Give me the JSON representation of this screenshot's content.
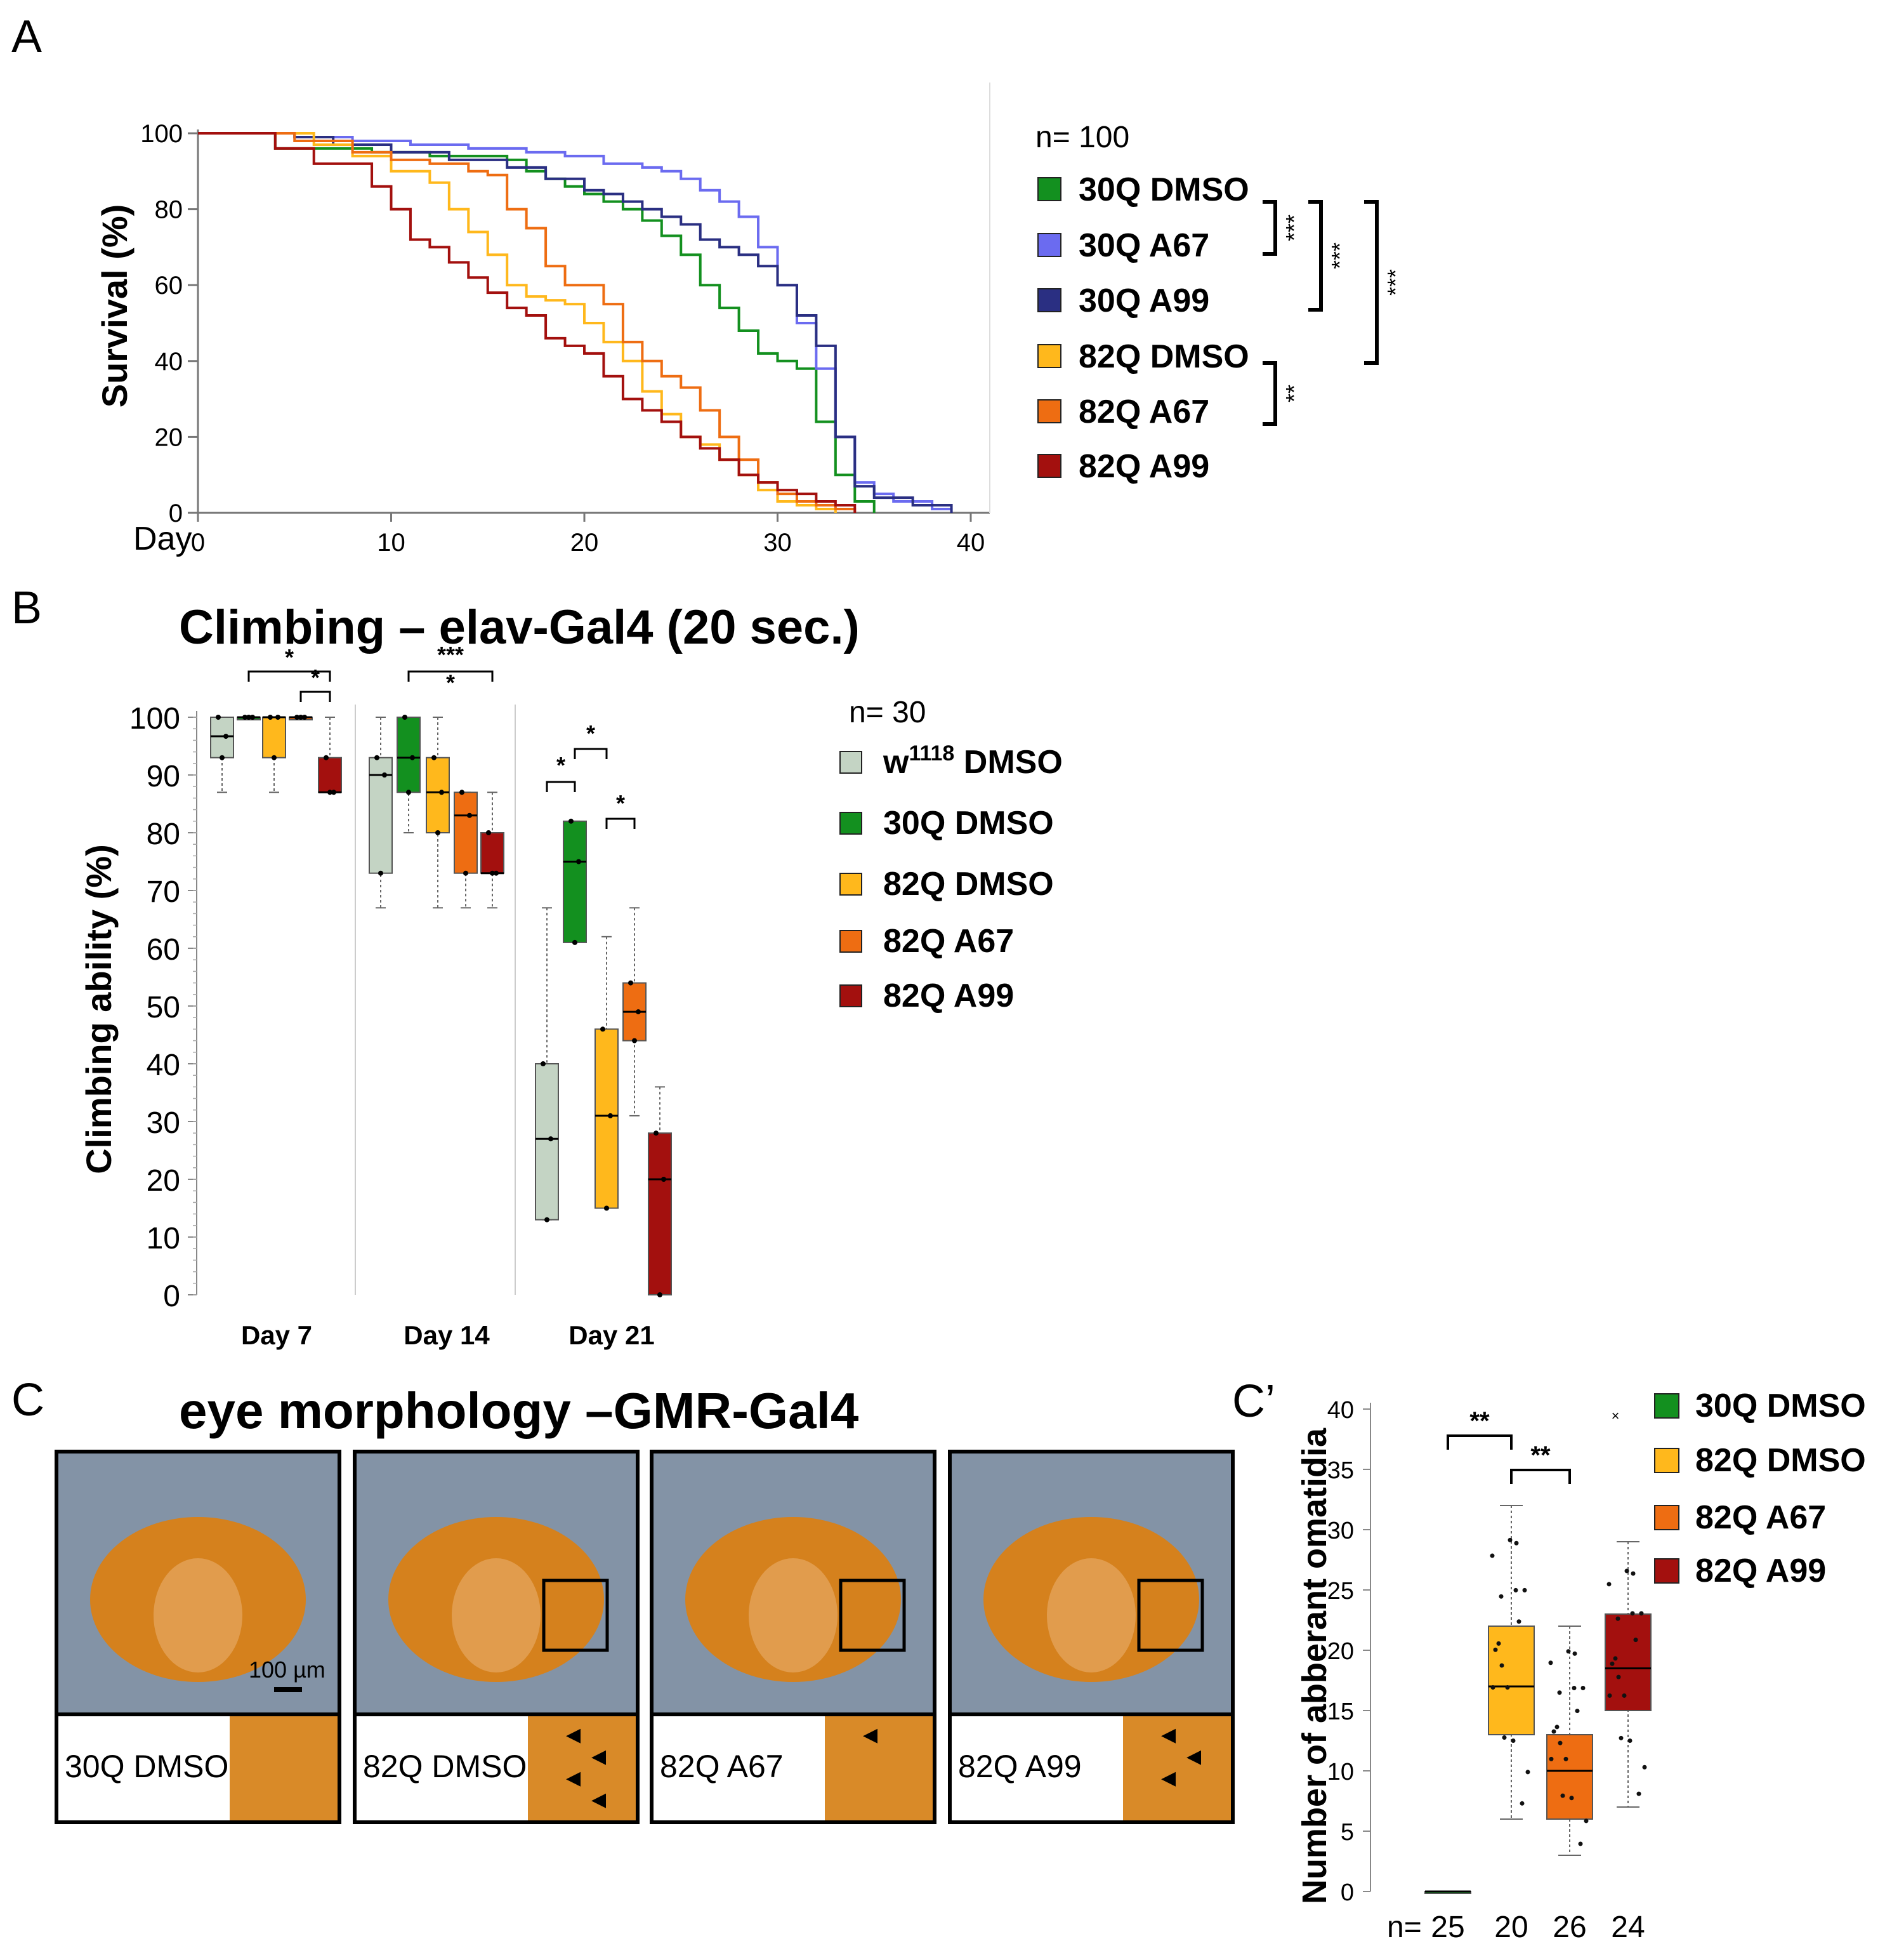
{
  "panels": {
    "A": {
      "letter": "A"
    },
    "B": {
      "letter": "B",
      "title": "Climbing  – elav-Gal4 (20 sec.)"
    },
    "C": {
      "letter": "C",
      "title": "eye morphology –GMR-Gal4",
      "scale_bar": "100 µm",
      "photos": [
        {
          "label": "30Q DMSO",
          "box": false,
          "arrows": 0
        },
        {
          "label": "82Q DMSO",
          "box": true,
          "arrows": 4
        },
        {
          "label": "82Q A67",
          "box": true,
          "arrows": 1
        },
        {
          "label": "82Q A99",
          "box": true,
          "arrows": 3
        }
      ]
    },
    "Cprime": {
      "letter": "C’"
    }
  },
  "colors": {
    "30Q DMSO": "#13901f",
    "30Q A67": "#6b6bf0",
    "30Q A99": "#2a2f82",
    "82Q DMSO": "#ffb81c",
    "82Q A67": "#ee6d12",
    "82Q A99": "#a3100e",
    "w1118 DMSO": "#c4d4c4"
  },
  "chart_data": [
    {
      "id": "A",
      "type": "line",
      "xlabel": "Day",
      "ylabel": "Survival (%)",
      "xlim": [
        0,
        40
      ],
      "ylim": [
        0,
        100
      ],
      "xticks": [
        0,
        10,
        20,
        30,
        40
      ],
      "yticks": [
        0,
        20,
        40,
        60,
        80,
        100
      ],
      "n_label": "n=  100",
      "series": [
        {
          "name": "30Q DMSO",
          "x": [
            0,
            4,
            7,
            9,
            12,
            14,
            16,
            17,
            18,
            19,
            20,
            21,
            22,
            23,
            24,
            25,
            26,
            27,
            28,
            29,
            30,
            31,
            32,
            33,
            34,
            35
          ],
          "y": [
            100,
            96,
            96,
            95,
            94,
            94,
            93,
            90,
            88,
            86,
            84,
            82,
            80,
            77,
            73,
            68,
            60,
            54,
            48,
            42,
            40,
            38,
            24,
            10,
            3,
            0
          ]
        },
        {
          "name": "30Q A67",
          "x": [
            0,
            5,
            8,
            11,
            14,
            17,
            19,
            21,
            23,
            24,
            25,
            26,
            27,
            28,
            29,
            30,
            31,
            32,
            33,
            34,
            35,
            36,
            38,
            39
          ],
          "y": [
            100,
            99,
            98,
            97,
            96,
            95,
            94,
            92,
            91,
            90,
            88,
            85,
            82,
            78,
            70,
            60,
            50,
            38,
            20,
            8,
            5,
            3,
            1,
            0
          ]
        },
        {
          "name": "30Q A99",
          "x": [
            0,
            5,
            7,
            10,
            13,
            16,
            18,
            20,
            21,
            22,
            23,
            24,
            25,
            26,
            27,
            28,
            29,
            30,
            31,
            32,
            33,
            34,
            35,
            37,
            39
          ],
          "y": [
            100,
            99,
            97,
            95,
            93,
            91,
            88,
            85,
            84,
            82,
            80,
            78,
            76,
            72,
            70,
            68,
            65,
            60,
            52,
            44,
            20,
            7,
            4,
            2,
            0
          ]
        },
        {
          "name": "82Q DMSO",
          "x": [
            0,
            4,
            6,
            8,
            10,
            12,
            13,
            14,
            15,
            16,
            17,
            18,
            19,
            20,
            21,
            22,
            23,
            24,
            25,
            26,
            27,
            28,
            29,
            30,
            31,
            32,
            33
          ],
          "y": [
            100,
            100,
            97,
            94,
            90,
            87,
            80,
            74,
            68,
            60,
            57,
            56,
            55,
            50,
            45,
            40,
            32,
            26,
            20,
            18,
            14,
            10,
            6,
            3,
            2,
            1,
            0
          ]
        },
        {
          "name": "82Q A67",
          "x": [
            0,
            5,
            8,
            10,
            12,
            14,
            15,
            16,
            17,
            18,
            19,
            20,
            21,
            22,
            23,
            24,
            25,
            26,
            27,
            28,
            29,
            30,
            31,
            32,
            33,
            34
          ],
          "y": [
            100,
            98,
            95,
            93,
            92,
            90,
            89,
            80,
            75,
            65,
            60,
            60,
            55,
            45,
            40,
            36,
            33,
            27,
            20,
            14,
            8,
            5,
            3,
            2,
            1,
            0
          ]
        },
        {
          "name": "82Q A99",
          "x": [
            0,
            4,
            6,
            9,
            10,
            11,
            12,
            13,
            14,
            15,
            16,
            17,
            18,
            19,
            20,
            21,
            22,
            23,
            24,
            25,
            26,
            27,
            28,
            29,
            30,
            31,
            32,
            33,
            34
          ],
          "y": [
            100,
            96,
            92,
            86,
            80,
            72,
            70,
            66,
            62,
            58,
            54,
            52,
            46,
            44,
            42,
            36,
            30,
            27,
            24,
            20,
            17,
            14,
            10,
            8,
            6,
            5,
            3,
            2,
            0
          ]
        }
      ],
      "significance": [
        {
          "label": "***",
          "between": [
            "30Q DMSO",
            "30Q A67"
          ]
        },
        {
          "label": "***",
          "between": [
            "30Q DMSO",
            "30Q A99"
          ]
        },
        {
          "label": "***",
          "between": [
            "30Q DMSO",
            "82Q DMSO"
          ]
        },
        {
          "label": "**",
          "between": [
            "82Q DMSO",
            "82Q A67"
          ]
        }
      ]
    },
    {
      "id": "B",
      "type": "box",
      "title": "Climbing  – elav-Gal4 (20 sec.)",
      "ylabel": "Climbing ability (%)",
      "ylim": [
        0,
        100
      ],
      "yticks": [
        0,
        10,
        20,
        30,
        40,
        50,
        60,
        70,
        80,
        90,
        100
      ],
      "groups": [
        "Day 7",
        "Day 14",
        "Day 21"
      ],
      "n_label": "n=  30",
      "legend": [
        {
          "name": "w1118 DMSO",
          "base": "w",
          "sup": "1118",
          "rest": " DMSO"
        },
        {
          "name": "30Q DMSO",
          "base": "30Q DMSO",
          "sup": "",
          "rest": ""
        },
        {
          "name": "82Q DMSO",
          "base": "82Q DMSO",
          "sup": "",
          "rest": ""
        },
        {
          "name": "82Q A67",
          "base": "82Q A67",
          "sup": "",
          "rest": ""
        },
        {
          "name": "82Q A99",
          "base": "82Q A99",
          "sup": "",
          "rest": ""
        }
      ],
      "boxes": [
        {
          "group": "Day 7",
          "name": "w1118 DMSO",
          "min": 87,
          "q1": 93,
          "median": 96.7,
          "q3": 100,
          "max": 100
        },
        {
          "group": "Day 7",
          "name": "30Q DMSO",
          "min": 100,
          "q1": 100,
          "median": 100,
          "q3": 100,
          "max": 100
        },
        {
          "group": "Day 7",
          "name": "82Q DMSO",
          "min": 87,
          "q1": 93,
          "median": 100,
          "q3": 100,
          "max": 100
        },
        {
          "group": "Day 7",
          "name": "82Q A67",
          "min": 100,
          "q1": 100,
          "median": 100,
          "q3": 100,
          "max": 100
        },
        {
          "group": "Day 7",
          "name": "82Q A99",
          "min": 87,
          "q1": 87,
          "median": 87,
          "q3": 93,
          "max": 100
        },
        {
          "group": "Day 14",
          "name": "w1118 DMSO",
          "min": 67,
          "q1": 73,
          "median": 90,
          "q3": 93,
          "max": 100
        },
        {
          "group": "Day 14",
          "name": "30Q DMSO",
          "min": 80,
          "q1": 87,
          "median": 93,
          "q3": 100,
          "max": 100
        },
        {
          "group": "Day 14",
          "name": "82Q DMSO",
          "min": 67,
          "q1": 80,
          "median": 87,
          "q3": 93,
          "max": 100
        },
        {
          "group": "Day 14",
          "name": "82Q A67",
          "min": 67,
          "q1": 73,
          "median": 83,
          "q3": 87,
          "max": 87
        },
        {
          "group": "Day 14",
          "name": "82Q A99",
          "min": 67,
          "q1": 73,
          "median": 73,
          "q3": 80,
          "max": 87
        },
        {
          "group": "Day 21",
          "name": "w1118 DMSO",
          "min": 13,
          "q1": 13,
          "median": 27,
          "q3": 40,
          "max": 67
        },
        {
          "group": "Day 21",
          "name": "30Q DMSO",
          "min": 61,
          "q1": 61,
          "median": 75,
          "q3": 82,
          "max": 82
        },
        {
          "group": "Day 21",
          "name": "82Q DMSO",
          "min": 15,
          "q1": 15,
          "median": 31,
          "q3": 46,
          "max": 62
        },
        {
          "group": "Day 21",
          "name": "82Q A67",
          "min": 31,
          "q1": 44,
          "median": 49,
          "q3": 54,
          "max": 67
        },
        {
          "group": "Day 21",
          "name": "82Q A99",
          "min": 0,
          "q1": 0,
          "median": 20,
          "q3": 28,
          "max": 36
        }
      ],
      "significance": [
        {
          "group": "Day 7",
          "label": "*",
          "from": 0,
          "to": 4
        },
        {
          "group": "Day 7",
          "label": "*",
          "from": 3,
          "to": 4
        },
        {
          "group": "Day 14",
          "label": "***",
          "from": 1,
          "to": 4
        },
        {
          "group": "Day 14",
          "label": "*",
          "from": 1,
          "to": 4
        },
        {
          "group": "Day 21",
          "label": "*",
          "from": 0,
          "to": 1
        },
        {
          "group": "Day 21",
          "label": "*",
          "from": 1,
          "to": 2
        },
        {
          "group": "Day 21",
          "label": "*",
          "from": 2,
          "to": 3
        }
      ]
    },
    {
      "id": "C'",
      "type": "box",
      "ylabel": "Number of abberant omatidia",
      "ylim": [
        0,
        40
      ],
      "yticks": [
        0,
        5,
        10,
        15,
        20,
        25,
        30,
        35,
        40
      ],
      "n_prefix": "n=",
      "n_values": [
        "25",
        "20",
        "26",
        "24"
      ],
      "legend": [
        "30Q DMSO",
        "82Q DMSO",
        "82Q A67",
        "82Q A99"
      ],
      "legend_mark": "×",
      "boxes": [
        {
          "name": "30Q DMSO",
          "min": 0,
          "q1": 0,
          "median": 0,
          "q3": 0,
          "max": 0
        },
        {
          "name": "82Q DMSO",
          "min": 6,
          "q1": 13,
          "median": 17,
          "q3": 22,
          "max": 32
        },
        {
          "name": "82Q A67",
          "min": 3,
          "q1": 6,
          "median": 10,
          "q3": 13,
          "max": 22
        },
        {
          "name": "82Q A99",
          "min": 7,
          "q1": 15,
          "median": 18.5,
          "q3": 23,
          "max": 29
        }
      ],
      "significance": [
        {
          "label": "**",
          "from": 0,
          "to": 1
        },
        {
          "label": "**",
          "from": 1,
          "to": 2
        }
      ]
    }
  ]
}
